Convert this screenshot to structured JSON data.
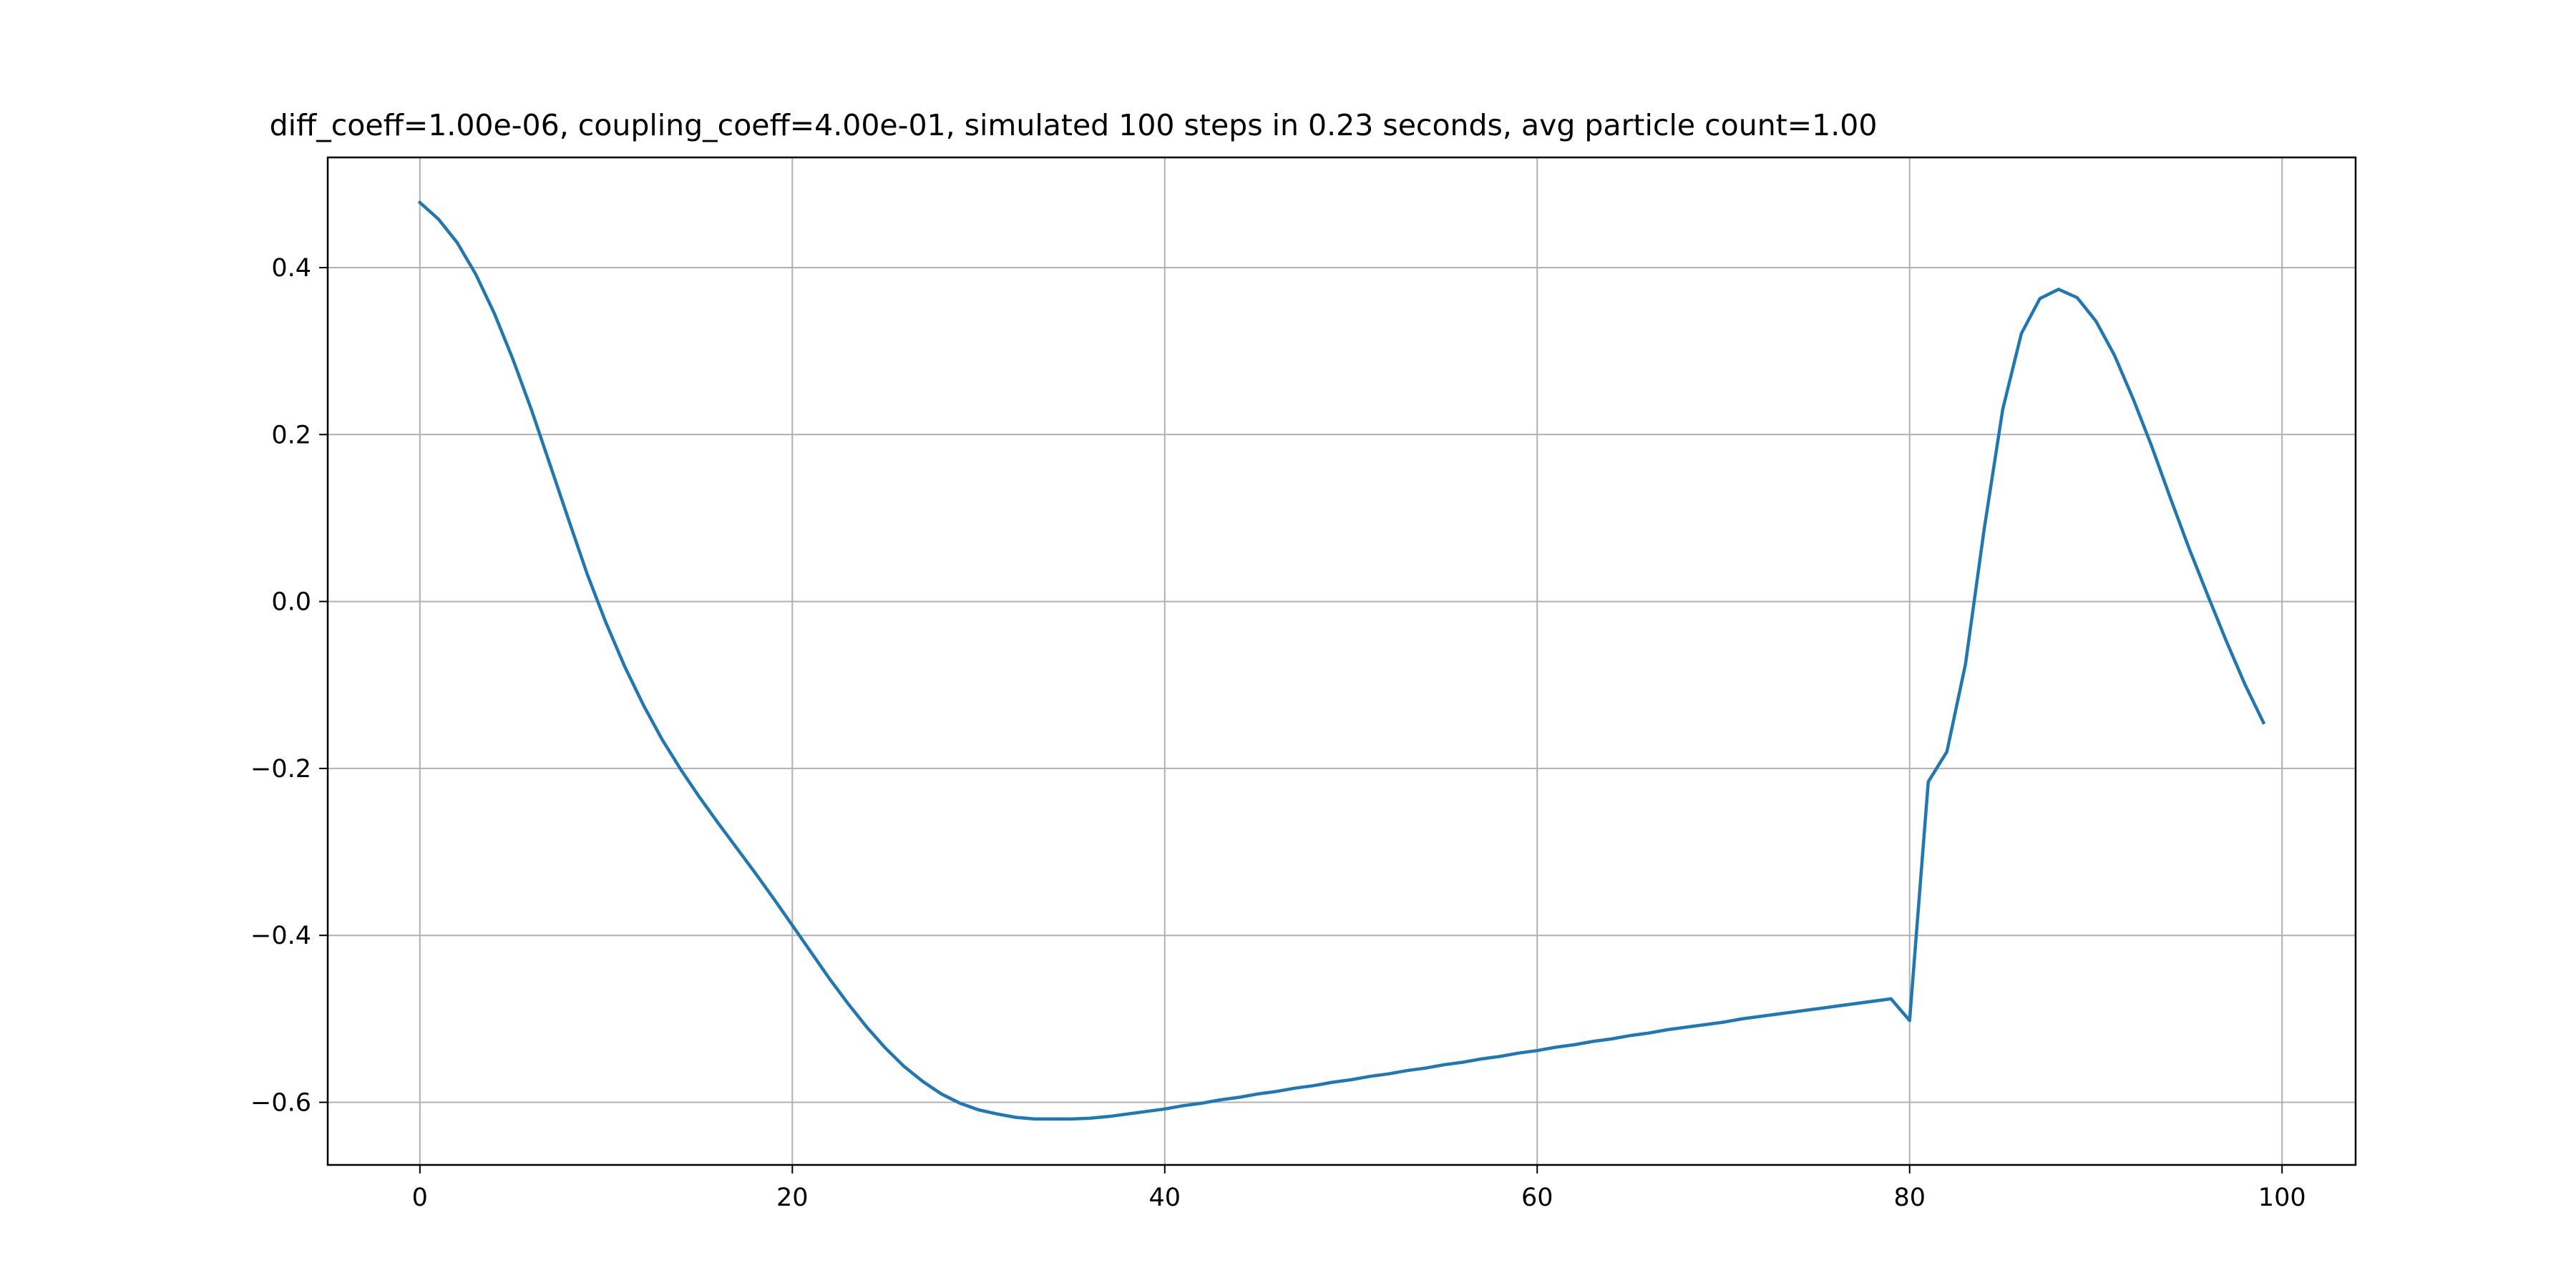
{
  "chart_data": {
    "type": "line",
    "title": "diff_coeff=1.00e-06, coupling_coeff=4.00e-01, simulated 100 steps in 0.23 seconds, avg particle count=1.00",
    "xlabel": "",
    "ylabel": "",
    "xlim": [
      -4.95,
      103.95
    ],
    "ylim": [
      -0.675,
      0.532
    ],
    "grid": true,
    "legend": "none",
    "x_ticks": [
      0,
      20,
      40,
      60,
      80,
      100
    ],
    "x_tick_labels": [
      "0",
      "20",
      "40",
      "60",
      "80",
      "100"
    ],
    "y_ticks": [
      -0.6,
      -0.4,
      -0.2,
      0.0,
      0.2,
      0.4
    ],
    "y_tick_labels": [
      "−0.6",
      "−0.4",
      "−0.2",
      "0.0",
      "0.2",
      "0.4"
    ],
    "series_color": "#1f77b4",
    "series": [
      {
        "x": [
          0,
          1,
          2,
          3,
          4,
          5,
          6,
          7,
          8,
          9,
          10,
          11,
          12,
          13,
          14,
          15,
          16,
          17,
          18,
          19,
          20,
          21,
          22,
          23,
          24,
          25,
          26,
          27,
          28,
          29,
          30,
          31,
          32,
          33,
          34,
          35,
          36,
          37,
          38,
          39,
          40,
          41,
          42,
          43,
          44,
          45,
          46,
          47,
          48,
          49,
          50,
          51,
          52,
          53,
          54,
          55,
          56,
          57,
          58,
          59,
          60,
          61,
          62,
          63,
          64,
          65,
          66,
          67,
          68,
          69,
          70,
          71,
          72,
          73,
          74,
          75,
          76,
          77,
          78,
          79,
          80,
          81,
          82,
          83,
          84,
          85,
          86,
          87,
          88,
          89,
          90,
          91,
          92,
          93,
          94,
          95,
          96,
          97,
          98,
          99
        ],
        "values": [
          0.478,
          0.458,
          0.43,
          0.392,
          0.345,
          0.29,
          0.229,
          0.163,
          0.097,
          0.032,
          -0.026,
          -0.078,
          -0.124,
          -0.165,
          -0.201,
          -0.234,
          -0.265,
          -0.295,
          -0.325,
          -0.356,
          -0.388,
          -0.42,
          -0.452,
          -0.482,
          -0.51,
          -0.535,
          -0.557,
          -0.575,
          -0.59,
          -0.601,
          -0.609,
          -0.614,
          -0.618,
          -0.62,
          -0.62,
          -0.62,
          -0.619,
          -0.617,
          -0.614,
          -0.611,
          -0.608,
          -0.604,
          -0.601,
          -0.597,
          -0.594,
          -0.59,
          -0.587,
          -0.583,
          -0.58,
          -0.576,
          -0.573,
          -0.569,
          -0.566,
          -0.562,
          -0.559,
          -0.555,
          -0.552,
          -0.548,
          -0.545,
          -0.541,
          -0.538,
          -0.534,
          -0.531,
          -0.527,
          -0.524,
          -0.52,
          -0.517,
          -0.513,
          -0.51,
          -0.507,
          -0.504,
          -0.5,
          -0.497,
          -0.494,
          -0.491,
          -0.488,
          -0.485,
          -0.482,
          -0.479,
          -0.476,
          -0.502,
          -0.216,
          -0.18,
          -0.075,
          0.086,
          0.23,
          0.321,
          0.363,
          0.374,
          0.364,
          0.336,
          0.295,
          0.243,
          0.186,
          0.124,
          0.064,
          0.008,
          -0.047,
          -0.099,
          -0.145
        ]
      }
    ]
  }
}
